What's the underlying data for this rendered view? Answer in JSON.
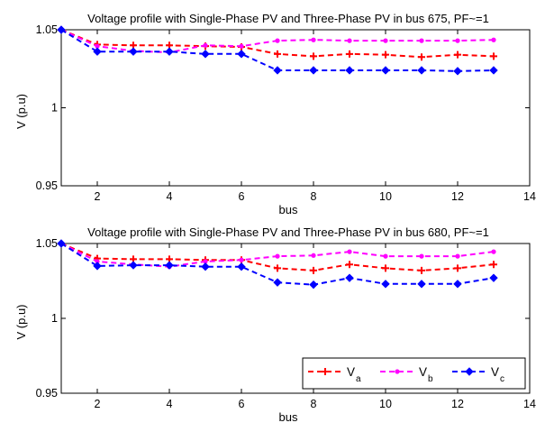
{
  "chart_data": [
    {
      "type": "line",
      "title": "Voltage profile with Single-Phase PV and Three-Phase PV in bus 675, PF~=1",
      "xlabel": "bus",
      "ylabel": "V (p.u)",
      "xlim": [
        1,
        14
      ],
      "ylim": [
        0.95,
        1.05
      ],
      "xticks": [
        "2",
        "4",
        "6",
        "8",
        "10",
        "12",
        "14"
      ],
      "yticks": [
        "0.95",
        "1",
        "1.05"
      ],
      "grid": false,
      "legend": null,
      "x": [
        1,
        2,
        3,
        4,
        5,
        6,
        7,
        8,
        9,
        10,
        11,
        12,
        13
      ],
      "series": [
        {
          "key": "a",
          "color": "#ff0000",
          "marker": "plus",
          "values": [
            1.05,
            1.0405,
            1.04,
            1.04,
            1.0395,
            1.039,
            1.0345,
            1.033,
            1.0345,
            1.034,
            1.0325,
            1.034,
            1.033
          ]
        },
        {
          "key": "b",
          "color": "#ff00ff",
          "marker": "dot",
          "values": [
            1.05,
            1.0395,
            1.0365,
            1.0355,
            1.04,
            1.0395,
            1.043,
            1.0435,
            1.043,
            1.043,
            1.043,
            1.043,
            1.0435
          ]
        },
        {
          "key": "c",
          "color": "#0000ff",
          "marker": "diamond",
          "values": [
            1.05,
            1.036,
            1.036,
            1.036,
            1.0345,
            1.0345,
            1.024,
            1.024,
            1.024,
            1.024,
            1.024,
            1.0235,
            1.024
          ]
        }
      ]
    },
    {
      "type": "line",
      "title": "Voltage profile with Single-Phase PV and Three-Phase PV in bus 680, PF~=1",
      "xlabel": "bus",
      "ylabel": "V (p.u)",
      "xlim": [
        1,
        14
      ],
      "ylim": [
        0.95,
        1.05
      ],
      "xticks": [
        "2",
        "4",
        "6",
        "8",
        "10",
        "12",
        "14"
      ],
      "yticks": [
        "0.95",
        "1",
        "1.05"
      ],
      "grid": false,
      "legend": "bottom-right",
      "x": [
        1,
        2,
        3,
        4,
        5,
        6,
        7,
        8,
        9,
        10,
        11,
        12,
        13
      ],
      "series": [
        {
          "key": "a",
          "name": "V",
          "sub": "a",
          "color": "#ff0000",
          "marker": "plus",
          "values": [
            1.05,
            1.04,
            1.0395,
            1.0395,
            1.039,
            1.039,
            1.0335,
            1.032,
            1.036,
            1.0335,
            1.032,
            1.0335,
            1.036
          ]
        },
        {
          "key": "b",
          "name": "V",
          "sub": "b",
          "color": "#ff00ff",
          "marker": "dot",
          "values": [
            1.05,
            1.038,
            1.036,
            1.0345,
            1.038,
            1.039,
            1.0415,
            1.042,
            1.0445,
            1.0415,
            1.0415,
            1.0415,
            1.0445
          ]
        },
        {
          "key": "c",
          "name": "V",
          "sub": "c",
          "color": "#0000ff",
          "marker": "diamond",
          "values": [
            1.05,
            1.035,
            1.0355,
            1.0355,
            1.0345,
            1.0345,
            1.024,
            1.0225,
            1.027,
            1.023,
            1.023,
            1.023,
            1.027
          ]
        }
      ]
    }
  ]
}
